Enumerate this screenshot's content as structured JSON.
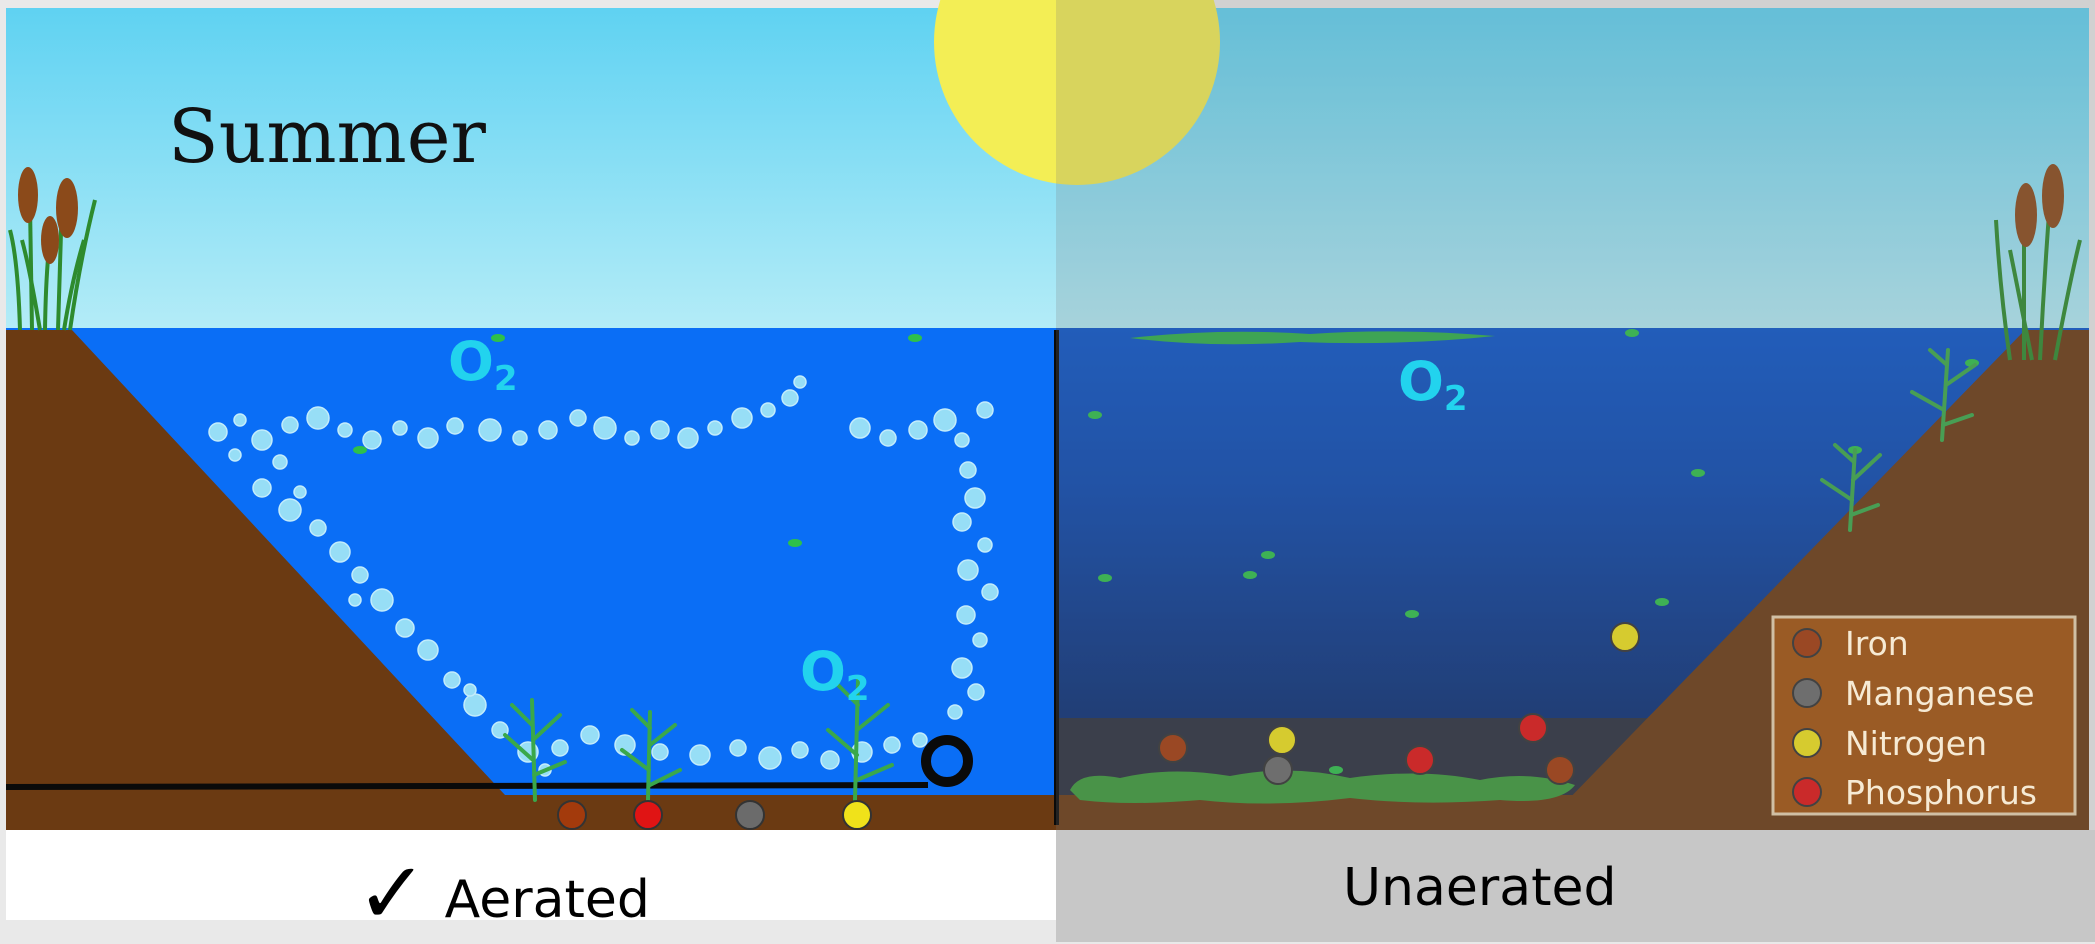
{
  "scene": {
    "season": "Summer",
    "gas": {
      "main": "O",
      "sub": "2"
    }
  },
  "panels": {
    "left": {
      "check": "✓",
      "label": "Aerated"
    },
    "right": {
      "label": "Unaerated"
    }
  },
  "legend": {
    "items": [
      {
        "label": "Iron",
        "color": "#a33a0c"
      },
      {
        "label": "Manganese",
        "color": "#6b6b6b"
      },
      {
        "label": "Nitrogen",
        "color": "#f0e21a"
      },
      {
        "label": "Phosphorus",
        "color": "#e01414"
      }
    ]
  },
  "colors": {
    "sky_top": "#5fd2f2",
    "sky_bottom": "#b4ecf7",
    "water_aerated": "#0a6ef6",
    "water_unaerated": "#0a3a8a",
    "soil": "#6b3a12",
    "sun": "#f3ee55",
    "bubble": "#9fe4f7",
    "plant": "#2e9a3a",
    "algae": "#3c9a3a",
    "legend_bg": "#a3530d"
  }
}
